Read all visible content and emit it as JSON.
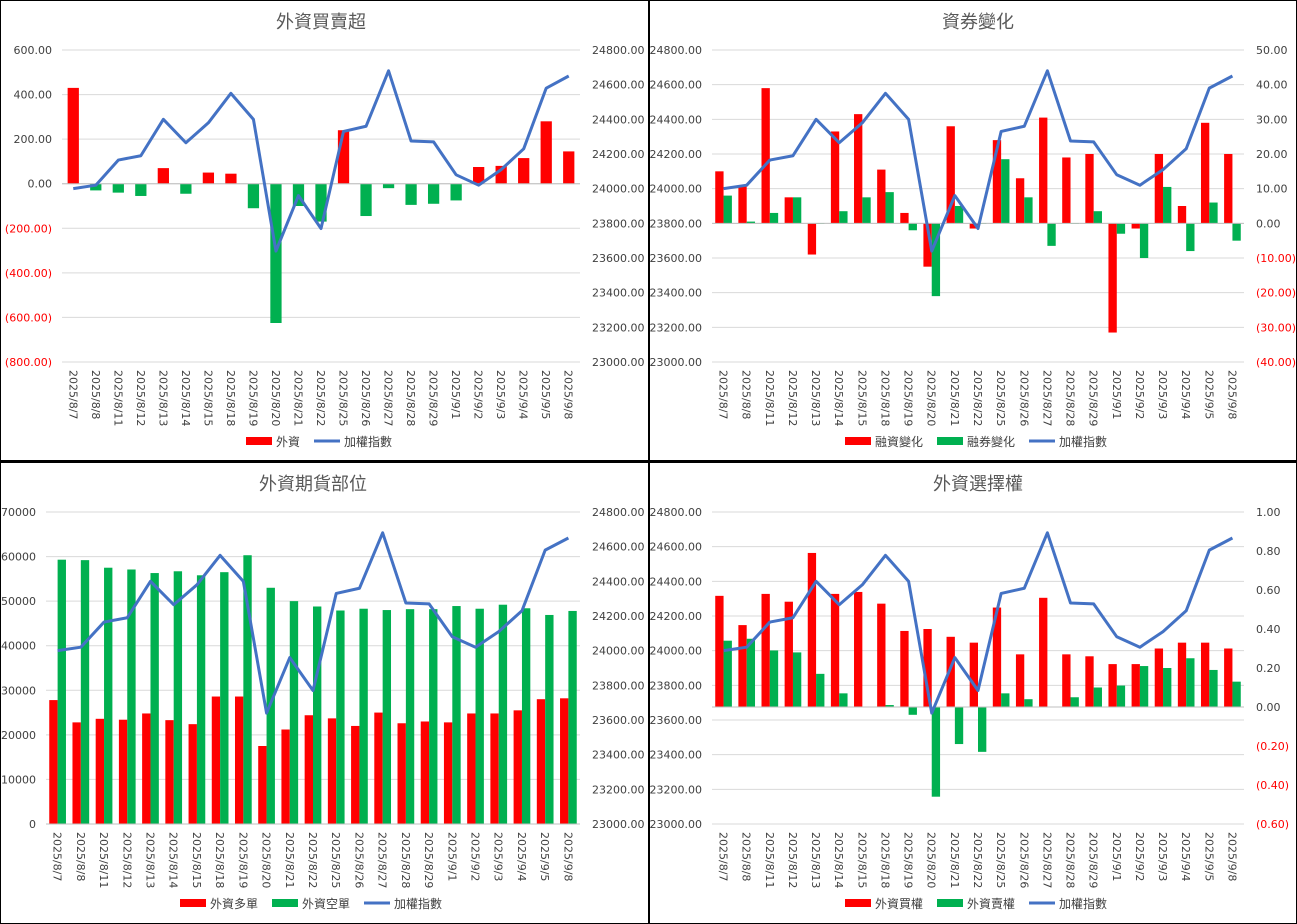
{
  "dates": [
    "2025/8/7",
    "2025/8/8",
    "2025/8/11",
    "2025/8/12",
    "2025/8/13",
    "2025/8/14",
    "2025/8/15",
    "2025/8/18",
    "2025/8/19",
    "2025/8/20",
    "2025/8/21",
    "2025/8/22",
    "2025/8/25",
    "2025/8/26",
    "2025/8/27",
    "2025/8/28",
    "2025/8/29",
    "2025/9/1",
    "2025/9/2",
    "2025/9/3",
    "2025/9/4",
    "2025/9/5",
    "2025/9/8"
  ],
  "colors": {
    "red": "#ff0000",
    "green": "#00b050",
    "blue": "#4472c4",
    "negative_label": "#ff0000",
    "grid": "#d9d9d9",
    "title": "#595959"
  },
  "chart_data": [
    {
      "id": "fi",
      "type": "bar",
      "title": "外資買賣超",
      "left_axis": {
        "min": -800,
        "max": 600,
        "step": 200,
        "labels": [
          "(800.00)",
          "(600.00)",
          "(400.00)",
          "(200.00)",
          "0.00",
          "200.00",
          "400.00",
          "600.00"
        ]
      },
      "right_axis": {
        "min": 23000,
        "max": 24800,
        "step": 200,
        "labels": [
          "23000.00",
          "23200.00",
          "23400.00",
          "23600.00",
          "23800.00",
          "24000.00",
          "24200.00",
          "24400.00",
          "24600.00",
          "24800.00"
        ]
      },
      "series": [
        {
          "name": "外資",
          "type": "bar",
          "axis": "left",
          "color": "pos_neg",
          "values": [
            430,
            -30,
            -40,
            -55,
            70,
            -45,
            50,
            45,
            -110,
            -625,
            -100,
            -170,
            240,
            -145,
            -20,
            -95,
            -90,
            -75,
            75,
            80,
            115,
            280,
            145
          ]
        },
        {
          "name": "加權指數",
          "type": "line",
          "axis": "right",
          "values": [
            24000,
            24020,
            24165,
            24190,
            24400,
            24265,
            24380,
            24550,
            24400,
            23640,
            23960,
            23770,
            24330,
            24360,
            24680,
            24275,
            24270,
            24080,
            24020,
            24110,
            24230,
            24580,
            24650
          ]
        }
      ],
      "legend": [
        "外資",
        "加權指數"
      ]
    },
    {
      "id": "margin",
      "type": "bar",
      "title": "資券變化",
      "left_axis": {
        "min": 23000,
        "max": 24800,
        "step": 200,
        "labels": [
          "23000.00",
          "23200.00",
          "23400.00",
          "23600.00",
          "23800.00",
          "24000.00",
          "24200.00",
          "24400.00",
          "24600.00",
          "24800.00"
        ]
      },
      "right_axis": {
        "min": -40,
        "max": 50,
        "step": 10,
        "labels": [
          "(40.00)",
          "(30.00)",
          "(20.00)",
          "(10.00)",
          "0.00",
          "10.00",
          "20.00",
          "30.00",
          "40.00",
          "50.00"
        ]
      },
      "series": [
        {
          "name": "融資變化",
          "type": "bar",
          "axis": "right",
          "values": [
            15,
            11,
            39,
            7.5,
            -9,
            26.5,
            31.5,
            15.5,
            3,
            -12.5,
            28,
            -1.5,
            24,
            13,
            30.5,
            19,
            20,
            -31.5,
            -1.5,
            20,
            5,
            29,
            20
          ]
        },
        {
          "name": "融券變化",
          "type": "bar",
          "axis": "right",
          "values": [
            8,
            0.5,
            3,
            7.5,
            0,
            3.5,
            7.5,
            9,
            -2,
            -21,
            5,
            0,
            18.5,
            7.5,
            -6.5,
            0,
            3.5,
            -3,
            -10,
            10.5,
            -8,
            6,
            -5
          ]
        },
        {
          "name": "加權指數",
          "type": "line",
          "axis": "left",
          "values": [
            24000,
            24020,
            24165,
            24190,
            24400,
            24265,
            24380,
            24550,
            24400,
            23640,
            23960,
            23770,
            24330,
            24360,
            24680,
            24275,
            24270,
            24080,
            24020,
            24110,
            24230,
            24580,
            24650
          ]
        }
      ],
      "legend": [
        "融資變化",
        "融券變化",
        "加權指數"
      ]
    },
    {
      "id": "futures",
      "type": "bar",
      "title": "外資期貨部位",
      "left_axis": {
        "min": 0,
        "max": 70000,
        "step": 10000,
        "labels": [
          "0",
          "10000",
          "20000",
          "30000",
          "40000",
          "50000",
          "60000",
          "70000"
        ]
      },
      "right_axis": {
        "min": 23000,
        "max": 24800,
        "step": 200,
        "labels": [
          "23000.00",
          "23200.00",
          "23400.00",
          "23600.00",
          "23800.00",
          "24000.00",
          "24200.00",
          "24400.00",
          "24600.00",
          "24800.00"
        ]
      },
      "series": [
        {
          "name": "外資多單",
          "type": "bar",
          "axis": "left",
          "values": [
            27800,
            22800,
            23600,
            23400,
            24800,
            23300,
            22400,
            28600,
            28600,
            17500,
            21200,
            24400,
            23700,
            22000,
            25000,
            22600,
            23000,
            22800,
            24800,
            24800,
            25500,
            28000,
            28200
          ]
        },
        {
          "name": "外資空單",
          "type": "bar",
          "axis": "left",
          "values": [
            59300,
            59200,
            57500,
            57100,
            56300,
            56700,
            55800,
            56500,
            60300,
            53000,
            50000,
            48800,
            47900,
            48300,
            48000,
            48200,
            48200,
            48900,
            48300,
            49200,
            48400,
            46900,
            47800
          ]
        },
        {
          "name": "加權指數",
          "type": "line",
          "axis": "right",
          "values": [
            24000,
            24020,
            24165,
            24190,
            24400,
            24265,
            24380,
            24550,
            24400,
            23640,
            23960,
            23770,
            24330,
            24360,
            24680,
            24275,
            24270,
            24080,
            24020,
            24110,
            24230,
            24580,
            24650
          ]
        }
      ],
      "legend": [
        "外資多單",
        "外資空單",
        "加權指數"
      ]
    },
    {
      "id": "options",
      "type": "bar",
      "title": "外資選擇權",
      "left_axis": {
        "min": 23000,
        "max": 24800,
        "step": 200,
        "labels": [
          "23000.00",
          "23200.00",
          "23400.00",
          "23600.00",
          "23800.00",
          "24000.00",
          "24200.00",
          "24400.00",
          "24600.00",
          "24800.00"
        ]
      },
      "right_axis": {
        "min": -0.6,
        "max": 1.0,
        "step": 0.2,
        "labels": [
          "(0.60)",
          "(0.40)",
          "(0.20)",
          "0.00",
          "0.20",
          "0.40",
          "0.60",
          "0.80",
          "1.00"
        ]
      },
      "series": [
        {
          "name": "外資買權",
          "type": "bar",
          "axis": "right",
          "values": [
            0.57,
            0.42,
            0.58,
            0.54,
            0.79,
            0.58,
            0.59,
            0.53,
            0.39,
            0.4,
            0.36,
            0.33,
            0.51,
            0.27,
            0.56,
            0.27,
            0.26,
            0.22,
            0.22,
            0.3,
            0.33,
            0.33,
            0.3
          ]
        },
        {
          "name": "外資賣權",
          "type": "bar",
          "axis": "right",
          "values": [
            0.34,
            0.35,
            0.29,
            0.28,
            0.17,
            0.07,
            0.0,
            0.01,
            -0.04,
            -0.46,
            -0.19,
            -0.23,
            0.07,
            0.04,
            0.0,
            0.05,
            0.1,
            0.11,
            0.21,
            0.2,
            0.25,
            0.19,
            0.13
          ]
        },
        {
          "name": "加權指數",
          "type": "line",
          "axis": "left",
          "values": [
            24000,
            24020,
            24165,
            24190,
            24400,
            24265,
            24380,
            24550,
            24400,
            23640,
            23960,
            23770,
            24330,
            24360,
            24680,
            24275,
            24270,
            24080,
            24020,
            24110,
            24230,
            24580,
            24650
          ]
        }
      ],
      "legend": [
        "外資買權",
        "外資賣權",
        "加權指數"
      ]
    }
  ]
}
